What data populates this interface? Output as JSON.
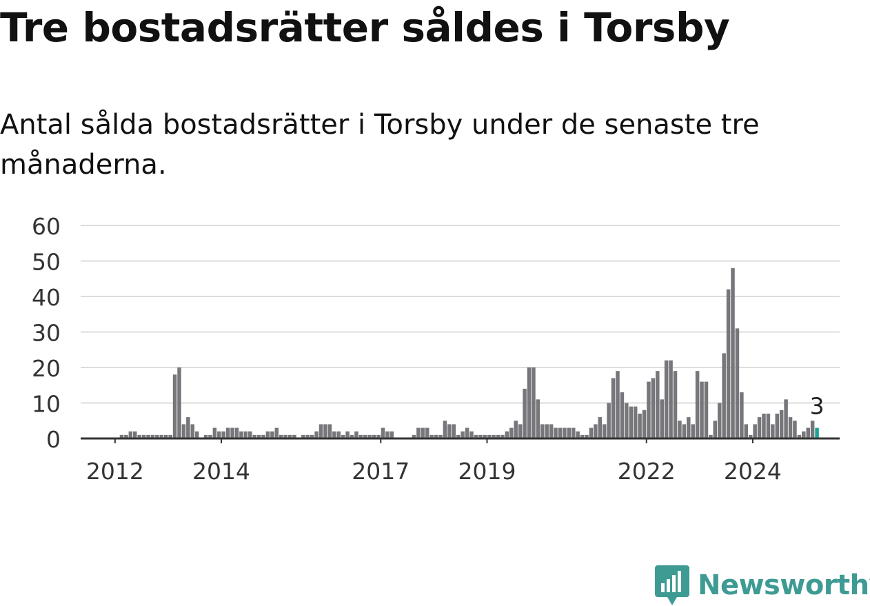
{
  "title": "Tre bostadsrätter såldes i Torsby",
  "subtitle": "Antal sålda bostadsrätter i Torsby under de senaste tre månaderna.",
  "brand": {
    "name": "Newsworthy",
    "color": "#3d9b93",
    "icon": "bar-chart-pin-icon"
  },
  "chart_data": {
    "type": "bar",
    "title": "Tre bostadsrätter såldes i Torsby",
    "subtitle": "Antal sålda bostadsrätter i Torsby under de senaste tre månaderna.",
    "xlabel": "",
    "ylabel": "",
    "ylim": [
      0,
      60
    ],
    "yticks": [
      0,
      10,
      20,
      30,
      40,
      50,
      60
    ],
    "grid": true,
    "legend": "none",
    "x_start": "2011-10",
    "frequency": "month",
    "xticks": [
      {
        "label": "2012",
        "date": "2012-01"
      },
      {
        "label": "2014",
        "date": "2014-01"
      },
      {
        "label": "2017",
        "date": "2017-01"
      },
      {
        "label": "2019",
        "date": "2019-01"
      },
      {
        "label": "2022",
        "date": "2022-01"
      },
      {
        "label": "2024",
        "date": "2024-01"
      }
    ],
    "bar_color": "#77767b",
    "highlight_color": "#1fa398",
    "highlight_label": "3",
    "series": [
      {
        "values": [
          0,
          0,
          0,
          0,
          1,
          1,
          2,
          2,
          1,
          1,
          1,
          1,
          1,
          1,
          1,
          1,
          18,
          20,
          4,
          6,
          4,
          2,
          0,
          1,
          1,
          3,
          2,
          2,
          3,
          3,
          3,
          2,
          2,
          2,
          1,
          1,
          1,
          2,
          2,
          3,
          1,
          1,
          1,
          1,
          0,
          1,
          1,
          1,
          2,
          4,
          4,
          4,
          2,
          2,
          1,
          2,
          1,
          2,
          1,
          1,
          1,
          1,
          1,
          3,
          2,
          2,
          0,
          0,
          0,
          0,
          1,
          3,
          3,
          3,
          1,
          1,
          1,
          5,
          4,
          4,
          1,
          2,
          3,
          2,
          1,
          1,
          1,
          1,
          1,
          1,
          1,
          2,
          3,
          5,
          4,
          14,
          20,
          20,
          11,
          4,
          4,
          4,
          3,
          3,
          3,
          3,
          3,
          2,
          1,
          1,
          3,
          4,
          6,
          4,
          10,
          17,
          19,
          13,
          10,
          9,
          9,
          7,
          8,
          16,
          17,
          19,
          11,
          22,
          22,
          19,
          5,
          4,
          6,
          4,
          19,
          16,
          16,
          1,
          5,
          10,
          24,
          42,
          48,
          31,
          13,
          4,
          1,
          4,
          6,
          7,
          7,
          4,
          7,
          8,
          11,
          6,
          5,
          1,
          2,
          3,
          5,
          3
        ]
      }
    ]
  }
}
